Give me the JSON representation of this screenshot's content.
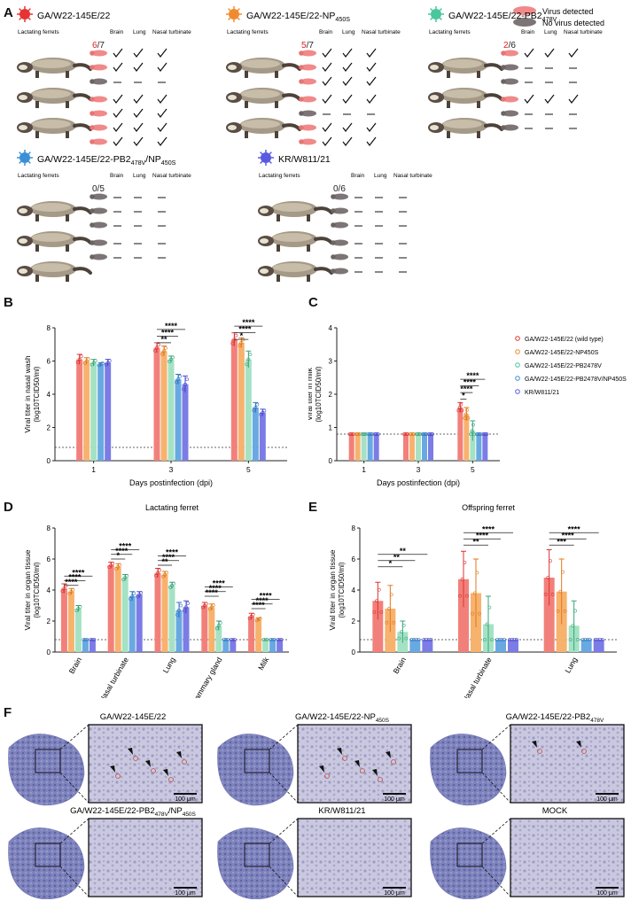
{
  "figure": {
    "panel_a": {
      "letter": "A",
      "legend": {
        "detected": "Virus detected",
        "not_detected": "No virus detected"
      },
      "column_headers": {
        "mothers": "Lactating ferrets",
        "brain": "Brain",
        "lung": "Lung",
        "nasal": "Nasal turbinate"
      },
      "groups": [
        {
          "name": "GA/W22-145E/22",
          "sub": "",
          "sub2": "",
          "tail": "",
          "ratio_num": "6",
          "ratio_den": "/7",
          "color": "#e63333",
          "pups": [
            [
              1,
              1,
              1,
              1
            ],
            [
              1,
              1,
              1,
              1
            ],
            [
              0,
              0,
              0,
              0
            ],
            [
              1,
              1,
              1,
              1
            ],
            [
              1,
              1,
              1,
              1
            ],
            [
              1,
              1,
              1,
              1
            ],
            [
              1,
              1,
              1,
              1
            ]
          ]
        },
        {
          "name": "GA/W22-145E/22-NP",
          "sub": "450S",
          "sub2": "",
          "tail": "",
          "ratio_num": "5",
          "ratio_den": "/7",
          "color": "#f08a30",
          "pups": [
            [
              1,
              1,
              1,
              1
            ],
            [
              1,
              1,
              1,
              1
            ],
            [
              1,
              1,
              1,
              1
            ],
            [
              1,
              1,
              1,
              1
            ],
            [
              0,
              0,
              0,
              0
            ],
            [
              1,
              1,
              1,
              1
            ],
            [
              1,
              1,
              1,
              1
            ]
          ]
        },
        {
          "name": "GA/W22-145E/22-PB2",
          "sub": "478V",
          "sub2": "",
          "tail": "",
          "ratio_num": "2",
          "ratio_den": "/6",
          "color": "#49c79a",
          "pups": [
            [
              1,
              1,
              1,
              1
            ],
            [
              0,
              0,
              0,
              0
            ],
            [
              0,
              0,
              0,
              0
            ],
            [
              1,
              1,
              1,
              1
            ],
            [
              0,
              0,
              0,
              0
            ],
            [
              0,
              0,
              0,
              0
            ]
          ]
        },
        {
          "name": "GA/W22-145E/22-PB2",
          "sub": "478V",
          "sub2": "450S",
          "tail": "/NP",
          "ratio_num": "",
          "ratio_den": "0/5",
          "color": "#3a8fd6",
          "pups": [
            [
              0,
              0,
              0,
              0
            ],
            [
              0,
              0,
              0,
              0
            ],
            [
              0,
              0,
              0,
              0
            ],
            [
              0,
              0,
              0,
              0
            ],
            [
              0,
              0,
              0,
              0
            ]
          ]
        },
        {
          "name": "KR/W811/21",
          "sub": "",
          "sub2": "",
          "tail": "",
          "ratio_num": "",
          "ratio_den": "0/6",
          "color": "#5a5ae0",
          "pups": [
            [
              0,
              0,
              0,
              0
            ],
            [
              0,
              0,
              0,
              0
            ],
            [
              0,
              0,
              0,
              0
            ],
            [
              0,
              0,
              0,
              0
            ],
            [
              0,
              0,
              0,
              0
            ],
            [
              0,
              0,
              0,
              0
            ]
          ]
        }
      ]
    },
    "panel_b": {
      "letter": "B",
      "chart_data": {
        "type": "bar",
        "ylabel_line1": "Viral titer in nasal wash",
        "ylabel_line2": "(log10TCID50/ml)",
        "xlabel": "Days postinfection (dpi)",
        "categories": [
          "1",
          "3",
          "5"
        ],
        "ylim": [
          0,
          8
        ],
        "yticks": [
          "0",
          "2",
          "4",
          "6",
          "8"
        ],
        "detection_limit": 0.8,
        "series": [
          {
            "name": "GA/W22-145E/22 (wild type)",
            "values": [
              6.1,
              6.8,
              7.3
            ],
            "errors": [
              0.3,
              0.3,
              0.4
            ]
          },
          {
            "name": "GA/W22-145E/22-NP450S",
            "values": [
              6.0,
              6.6,
              7.1
            ],
            "errors": [
              0.2,
              0.3,
              0.3
            ]
          },
          {
            "name": "GA/W22-145E/22-PB2478V",
            "values": [
              5.9,
              6.1,
              6.1
            ],
            "errors": [
              0.2,
              0.2,
              0.5
            ]
          },
          {
            "name": "GA/W22-145E/22-PB2478V/NP450S",
            "values": [
              5.8,
              4.9,
              3.2
            ],
            "errors": [
              0.1,
              0.3,
              0.3
            ]
          },
          {
            "name": "KR/W811/21",
            "values": [
              5.9,
              4.6,
              2.9
            ],
            "errors": [
              0.2,
              0.5,
              0.2
            ]
          }
        ],
        "significance": [
          "****",
          "****",
          "*",
          "****",
          "****",
          "**"
        ]
      }
    },
    "panel_c": {
      "letter": "C",
      "chart_data": {
        "type": "bar",
        "ylabel_line1": "Viral titer in milk",
        "ylabel_line2": "(log10TCID50/ml)",
        "xlabel": "Days postinfection (dpi)",
        "categories": [
          "1",
          "3",
          "5"
        ],
        "ylim": [
          0,
          4
        ],
        "yticks": [
          "0",
          "1",
          "2",
          "3",
          "4"
        ],
        "detection_limit": 0.8,
        "series": [
          {
            "name": "GA/W22-145E/22 (wild type)",
            "values": [
              0.8,
              0.8,
              1.6
            ],
            "errors": [
              0,
              0,
              0.15
            ]
          },
          {
            "name": "GA/W22-145E/22-NP450S",
            "values": [
              0.8,
              0.8,
              1.4
            ],
            "errors": [
              0,
              0,
              0.2
            ]
          },
          {
            "name": "GA/W22-145E/22-PB2478V",
            "values": [
              0.8,
              0.8,
              0.9
            ],
            "errors": [
              0,
              0,
              0.3
            ]
          },
          {
            "name": "GA/W22-145E/22-PB2478V/NP450S",
            "values": [
              0.8,
              0.8,
              0.8
            ],
            "errors": [
              0,
              0,
              0
            ]
          },
          {
            "name": "KR/W811/21",
            "values": [
              0.8,
              0.8,
              0.8
            ],
            "errors": [
              0,
              0,
              0
            ]
          }
        ],
        "significance": [
          "****",
          "****",
          "****",
          "*"
        ],
        "legend": [
          {
            "label": "GA/W22-145E/22 (wild type)",
            "color": "#e63333"
          },
          {
            "label": "GA/W22-145E/22-NP450S",
            "color": "#f08a30"
          },
          {
            "label": "GA/W22-145E/22-PB2478V",
            "color": "#49c79a"
          },
          {
            "label": "GA/W22-145E/22-PB2478V/NP450S",
            "color": "#3a8fd6"
          },
          {
            "label": "KR/W811/21",
            "color": "#5a5ae0"
          }
        ]
      }
    },
    "panel_d": {
      "letter": "D",
      "chart_data": {
        "type": "bar",
        "title": "Lactating ferret",
        "ylabel_line1": "Viral titer in organ tissue",
        "ylabel_line2": "(log10TCID50/ml)",
        "categories": [
          "Brain",
          "Nasal turbinate",
          "Lung",
          "Mammary gland",
          "Milk"
        ],
        "ylim": [
          0,
          8
        ],
        "yticks": [
          "0",
          "2",
          "4",
          "6",
          "8"
        ],
        "detection_limit": 0.8,
        "series": [
          {
            "name": "GA/W22-145E/22 (wild type)",
            "values": [
              4.1,
              5.6,
              5.1,
              3.0,
              2.3
            ],
            "errors": [
              0.3,
              0.2,
              0.3,
              0.2,
              0.2
            ]
          },
          {
            "name": "GA/W22-145E/22-NP450S",
            "values": [
              3.9,
              5.5,
              5.0,
              2.9,
              2.1
            ],
            "errors": [
              0.2,
              0.2,
              0.2,
              0.2,
              0.1
            ]
          },
          {
            "name": "GA/W22-145E/22-PB2478V",
            "values": [
              2.8,
              4.8,
              4.3,
              1.7,
              0.8
            ],
            "errors": [
              0.2,
              0.2,
              0.2,
              0.3,
              0
            ]
          },
          {
            "name": "GA/W22-145E/22-PB2478V/NP450S",
            "values": [
              0.8,
              3.6,
              2.7,
              0.8,
              0.8
            ],
            "errors": [
              0,
              0.3,
              0.5,
              0,
              0
            ]
          },
          {
            "name": "KR/W811/21",
            "values": [
              0.8,
              3.7,
              2.9,
              0.8,
              0.8
            ],
            "errors": [
              0,
              0.2,
              0.4,
              0,
              0
            ]
          }
        ],
        "significance": [
          "****",
          "****",
          "****",
          "****",
          "****",
          "*",
          "****",
          "****",
          "**",
          "****",
          "****",
          "****",
          "****",
          "****",
          "****"
        ]
      }
    },
    "panel_e": {
      "letter": "E",
      "chart_data": {
        "type": "bar",
        "title": "Offspring ferret",
        "ylabel_line1": "Viral titer in organ tissue",
        "ylabel_line2": "(log10TCID50/ml)",
        "categories": [
          "Brain",
          "Nasal turbinate",
          "Lung"
        ],
        "ylim": [
          0,
          8
        ],
        "yticks": [
          "0",
          "2",
          "4",
          "6",
          "8"
        ],
        "detection_limit": 0.8,
        "series": [
          {
            "name": "GA/W22-145E/22 (wild type)",
            "values": [
              3.3,
              4.7,
              4.8
            ],
            "errors": [
              1.2,
              1.8,
              1.8
            ]
          },
          {
            "name": "GA/W22-145E/22-NP450S",
            "values": [
              2.8,
              3.8,
              3.9
            ],
            "errors": [
              1.5,
              2.2,
              2.1
            ]
          },
          {
            "name": "GA/W22-145E/22-PB2478V",
            "values": [
              1.3,
              1.8,
              1.7
            ],
            "errors": [
              0.7,
              1.8,
              1.6
            ]
          },
          {
            "name": "GA/W22-145E/22-PB2478V/NP450S",
            "values": [
              0.8,
              0.8,
              0.8
            ],
            "errors": [
              0,
              0,
              0
            ]
          },
          {
            "name": "KR/W811/21",
            "values": [
              0.8,
              0.8,
              0.8
            ],
            "errors": [
              0,
              0,
              0
            ]
          }
        ],
        "significance": [
          "**",
          "**",
          "*",
          "****",
          "****",
          "**",
          "****",
          "****",
          "***"
        ]
      }
    },
    "panel_f": {
      "letter": "F",
      "scale_bar": "100 μm",
      "images": [
        {
          "title": "GA/W22-145E/22",
          "sub": "",
          "tail": "",
          "sub2": ""
        },
        {
          "title": "GA/W22-145E/22-NP",
          "sub": "450S",
          "tail": "",
          "sub2": ""
        },
        {
          "title": "GA/W22-145E/22-PB2",
          "sub": "478V",
          "tail": "",
          "sub2": ""
        },
        {
          "title": "GA/W22-145E/22-PB2",
          "sub": "478V",
          "tail": "/NP",
          "sub2": "450S"
        },
        {
          "title": "KR/W811/21",
          "sub": "",
          "tail": "",
          "sub2": ""
        },
        {
          "title": "MOCK",
          "sub": "",
          "tail": "",
          "sub2": ""
        }
      ]
    }
  }
}
